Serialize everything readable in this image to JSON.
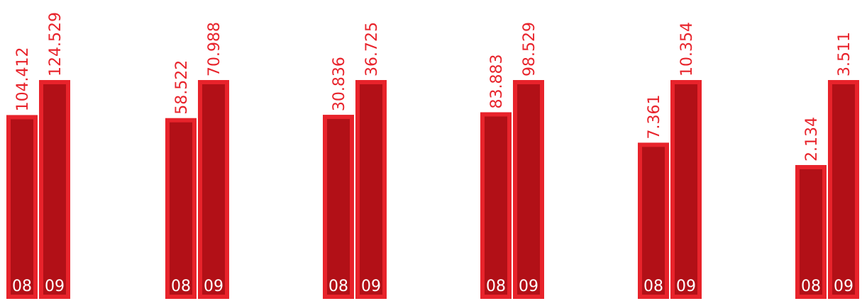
{
  "chart_data": {
    "type": "bar",
    "series_labels": [
      "08",
      "09"
    ],
    "groups": [
      {
        "values": [
          104.412,
          124.529
        ],
        "labels": [
          "104.412",
          "124.529"
        ]
      },
      {
        "values": [
          58.522,
          70.988
        ],
        "labels": [
          "58.522",
          "70.988"
        ]
      },
      {
        "values": [
          30.836,
          36.725
        ],
        "labels": [
          "30.836",
          "36.725"
        ]
      },
      {
        "values": [
          83.883,
          98.529
        ],
        "labels": [
          "83.883",
          "98.529"
        ]
      },
      {
        "values": [
          7.361,
          10.354
        ],
        "labels": [
          "7.361",
          "10.354"
        ]
      },
      {
        "values": [
          2.134,
          3.511
        ],
        "labels": [
          "2.134",
          "3.511"
        ]
      }
    ],
    "colors": {
      "fill": "#b21017",
      "stroke": "#e8232b",
      "label": "#e8232b",
      "year_text": "#ffffff"
    }
  }
}
